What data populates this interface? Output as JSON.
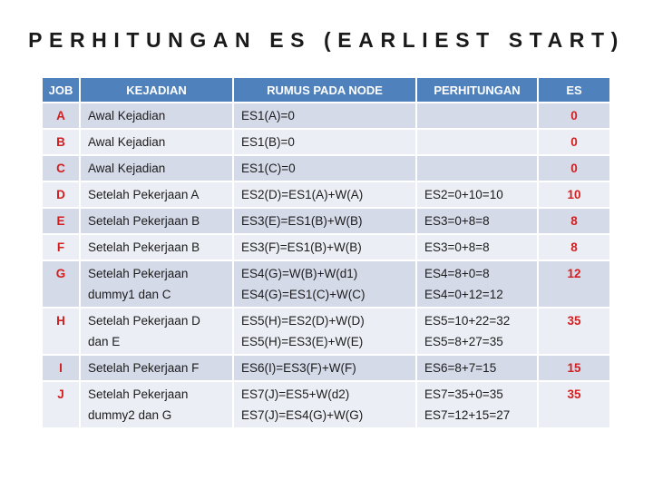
{
  "title": "PERHITUNGAN ES (EARLIEST START)",
  "colors": {
    "header_bg": "#4F81BD",
    "band_dark": "#D5DAE9",
    "band_light": "#ECEEF5",
    "accent_red": "#D21F1F",
    "title_color": "#1A1A1A"
  },
  "table": {
    "columns": [
      "JOB",
      "KEJADIAN",
      "RUMUS PADA NODE",
      "PERHITUNGAN",
      "ES"
    ],
    "rows": [
      {
        "job": "A",
        "kejadian": [
          "Awal Kejadian"
        ],
        "rumus": [
          "ES1(A)=0"
        ],
        "perhitungan": [],
        "es": "0"
      },
      {
        "job": "B",
        "kejadian": [
          "Awal Kejadian"
        ],
        "rumus": [
          "ES1(B)=0"
        ],
        "perhitungan": [],
        "es": "0"
      },
      {
        "job": "C",
        "kejadian": [
          "Awal Kejadian"
        ],
        "rumus": [
          "ES1(C)=0"
        ],
        "perhitungan": [],
        "es": "0"
      },
      {
        "job": "D",
        "kejadian": [
          "Setelah Pekerjaan A"
        ],
        "rumus": [
          "ES2(D)=ES1(A)+W(A)"
        ],
        "perhitungan": [
          "ES2=0+10=10"
        ],
        "es": "10"
      },
      {
        "job": "E",
        "kejadian": [
          "Setelah Pekerjaan B"
        ],
        "rumus": [
          "ES3(E)=ES1(B)+W(B)"
        ],
        "perhitungan": [
          "ES3=0+8=8"
        ],
        "es": "8"
      },
      {
        "job": "F",
        "kejadian": [
          "Setelah Pekerjaan B"
        ],
        "rumus": [
          "ES3(F)=ES1(B)+W(B)"
        ],
        "perhitungan": [
          "ES3=0+8=8"
        ],
        "es": "8"
      },
      {
        "job": "G",
        "kejadian": [
          "Setelah Pekerjaan",
          "dummy1 dan C"
        ],
        "rumus": [
          "ES4(G)=W(B)+W(d1)",
          "ES4(G)=ES1(C)+W(C)"
        ],
        "perhitungan": [
          "ES4=8+0=8",
          "ES4=0+12=12"
        ],
        "es": "12"
      },
      {
        "job": "H",
        "kejadian": [
          "Setelah Pekerjaan D",
          "dan E"
        ],
        "rumus": [
          "ES5(H)=ES2(D)+W(D)",
          "ES5(H)=ES3(E)+W(E)"
        ],
        "perhitungan": [
          "ES5=10+22=32",
          "ES5=8+27=35"
        ],
        "es": "35"
      },
      {
        "job": "I",
        "kejadian": [
          "Setelah Pekerjaan F"
        ],
        "rumus": [
          "ES6(I)=ES3(F)+W(F)"
        ],
        "perhitungan": [
          "ES6=8+7=15"
        ],
        "es": "15"
      },
      {
        "job": "J",
        "kejadian": [
          "Setelah Pekerjaan",
          "dummy2 dan G"
        ],
        "rumus": [
          "ES7(J)=ES5+W(d2)",
          "ES7(J)=ES4(G)+W(G)"
        ],
        "perhitungan": [
          "ES7=35+0=35",
          "ES7=12+15=27"
        ],
        "es": "35"
      }
    ]
  }
}
